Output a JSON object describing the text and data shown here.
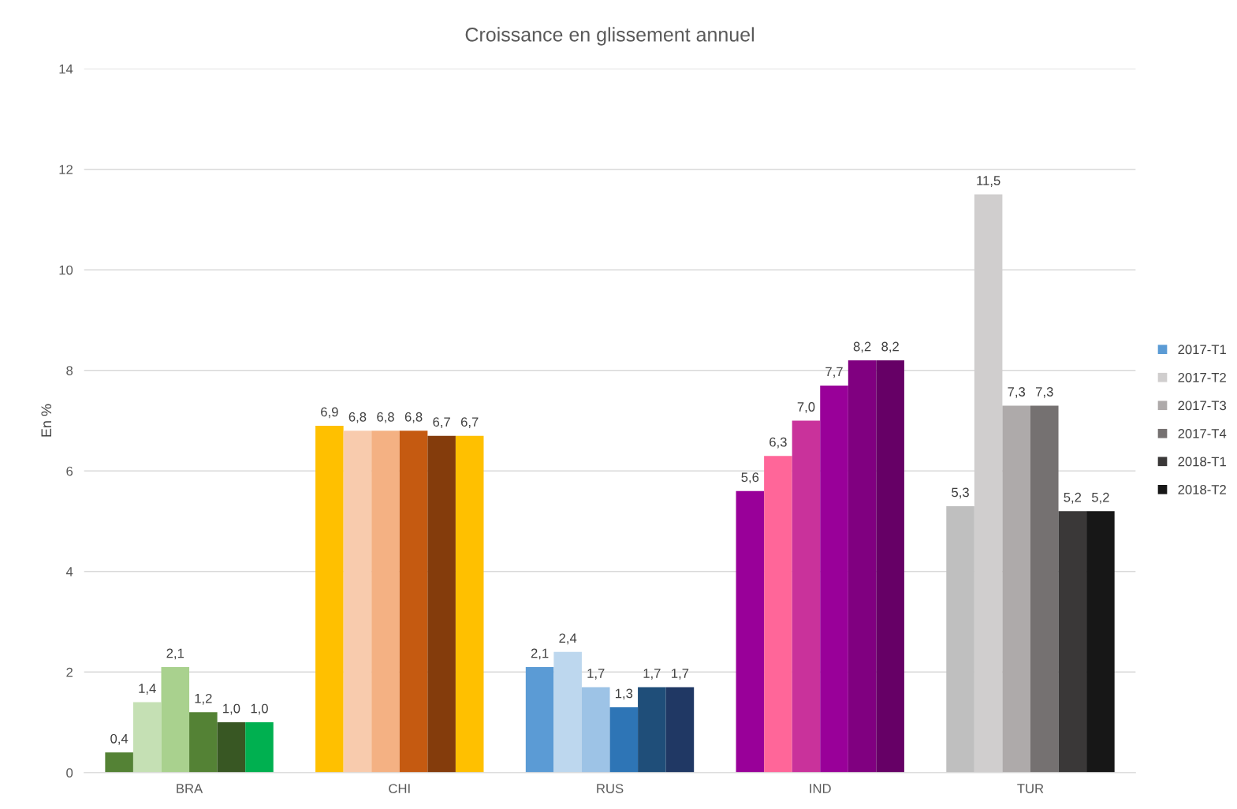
{
  "chart_data": {
    "type": "bar",
    "title": "Croissance en glissement annuel",
    "ylabel": "En %",
    "categories": [
      "BRA",
      "CHI",
      "RUS",
      "IND",
      "TUR"
    ],
    "ylim": [
      0,
      14
    ],
    "yticks": [
      0,
      2,
      4,
      6,
      8,
      10,
      12,
      14
    ],
    "grid": "y",
    "legend": "right",
    "series": [
      {
        "name": "2017-T1",
        "color": "#5b9bd5",
        "colors": [
          "#548235",
          "#ffc000",
          "#5b9bd5",
          "#990099",
          "#bfbfbf"
        ],
        "values": [
          0.4,
          6.9,
          2.1,
          5.6,
          5.3
        ],
        "value_labels": [
          "0,4",
          "6,9",
          "2,1",
          "5,6",
          "5,3"
        ]
      },
      {
        "name": "2017-T2",
        "color": "#d0cece",
        "colors": [
          "#c5e0b4",
          "#f8cbad",
          "#bdd7ee",
          "#ff6699",
          "#d0cece"
        ],
        "values": [
          1.4,
          6.8,
          2.4,
          6.3,
          11.5
        ],
        "value_labels": [
          "1,4",
          "6,8",
          "2,4",
          "6,3",
          "11,5"
        ]
      },
      {
        "name": "2017-T3",
        "color": "#aeaaaa",
        "colors": [
          "#a9d18e",
          "#f4b183",
          "#9dc3e6",
          "#c9329b",
          "#aeaaaa"
        ],
        "values": [
          2.1,
          6.8,
          1.7,
          7.0,
          7.3
        ],
        "value_labels": [
          "2,1",
          "6,8",
          "1,7",
          "7,0",
          "7,3"
        ]
      },
      {
        "name": "2017-T4",
        "color": "#757171",
        "colors": [
          "#548235",
          "#c55a11",
          "#2e75b6",
          "#990099",
          "#757171"
        ],
        "values": [
          1.2,
          6.8,
          1.3,
          7.7,
          7.3
        ],
        "value_labels": [
          "1,2",
          "6,8",
          "1,3",
          "7,7",
          "7,3"
        ]
      },
      {
        "name": "2018-T1",
        "color": "#3a3838",
        "colors": [
          "#385723",
          "#843c0c",
          "#1f4e79",
          "#800080",
          "#3a3838"
        ],
        "values": [
          1.0,
          6.7,
          1.7,
          8.2,
          5.2
        ],
        "value_labels": [
          "1,0",
          "6,7",
          "1,7",
          "8,2",
          "5,2"
        ]
      },
      {
        "name": "2018-T2",
        "color": "#171717",
        "colors": [
          "#00b050",
          "#ffc000",
          "#203864",
          "#660066",
          "#171717"
        ],
        "values": [
          1.0,
          6.7,
          1.7,
          8.2,
          5.2
        ],
        "value_labels": [
          "1,0",
          "6,7",
          "1,7",
          "8,2",
          "5,2"
        ]
      }
    ]
  }
}
